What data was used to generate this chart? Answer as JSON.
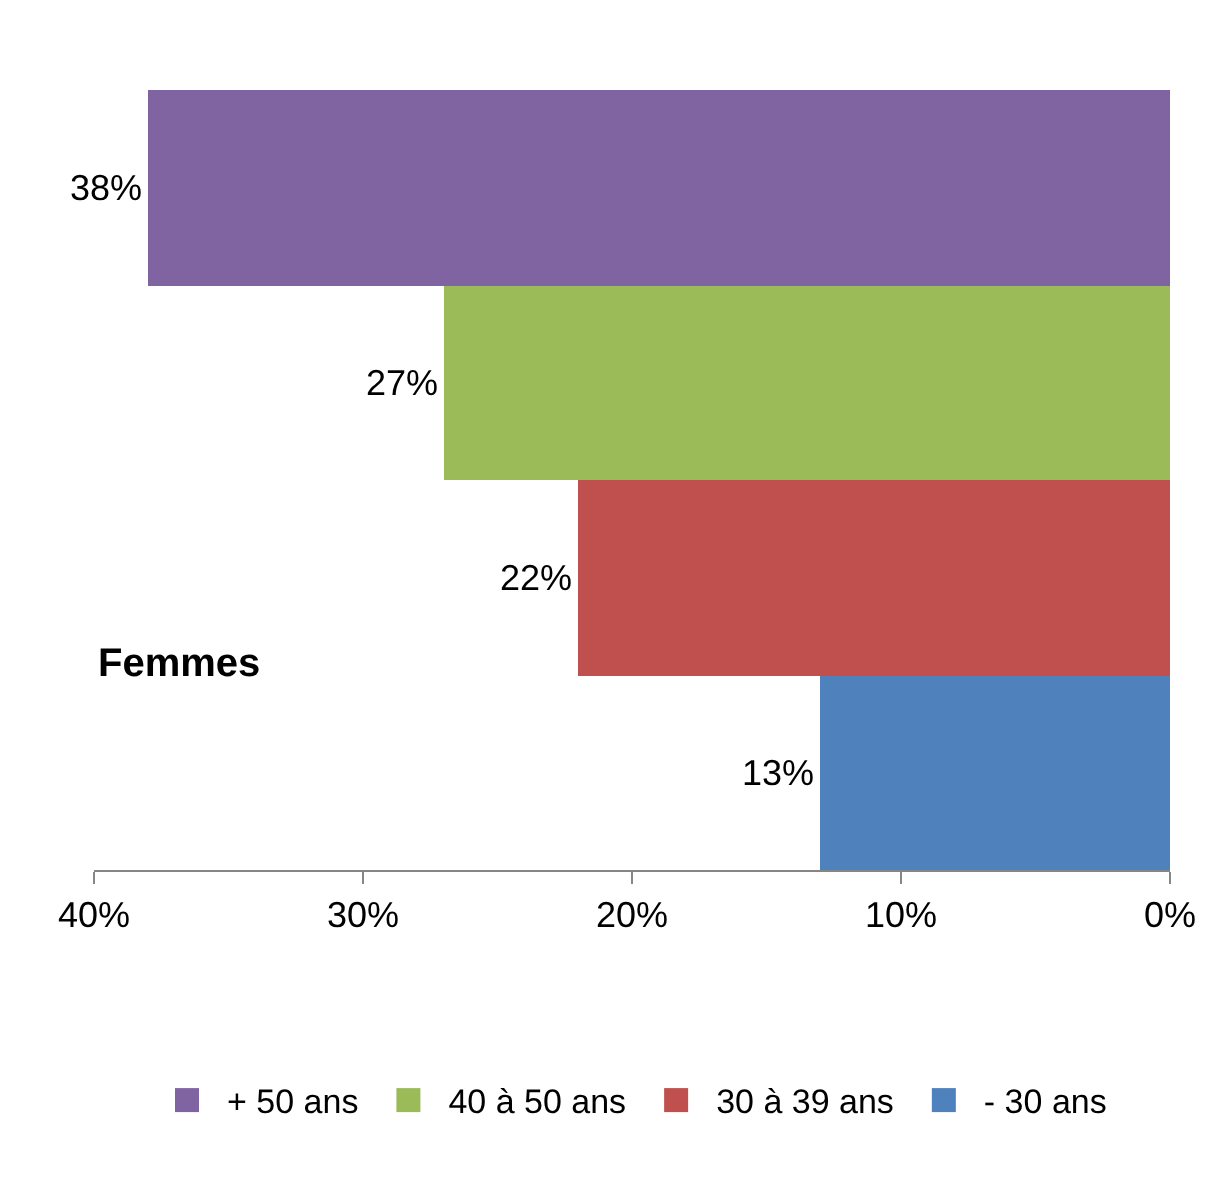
{
  "chart_data": {
    "type": "bar",
    "orientation": "horizontal",
    "categories": [
      null
    ],
    "series": [
      {
        "name": "+ 50 ans",
        "color": "#8064a2",
        "values": [
          38
        ],
        "value_labels": [
          "38%"
        ]
      },
      {
        "name": "40 à 50 ans",
        "color": "#9bbb59",
        "values": [
          27
        ],
        "value_labels": [
          "27%"
        ]
      },
      {
        "name": "30 à 39 ans",
        "color": "#c0504d",
        "values": [
          22
        ],
        "value_labels": [
          "22%"
        ]
      },
      {
        "name": "- 30 ans",
        "color": "#4f81bd",
        "values": [
          13
        ],
        "value_labels": [
          "13%"
        ]
      }
    ],
    "xlim": [
      40,
      0
    ],
    "xticks": [
      {
        "value": 40,
        "label": "40%"
      },
      {
        "value": 30,
        "label": "30%"
      },
      {
        "value": 20,
        "label": "20%"
      },
      {
        "value": 10,
        "label": "10%"
      },
      {
        "value": 0,
        "label": "0%"
      }
    ],
    "annotations": [
      "Femmes"
    ],
    "grid": false,
    "legend": "bottom"
  }
}
